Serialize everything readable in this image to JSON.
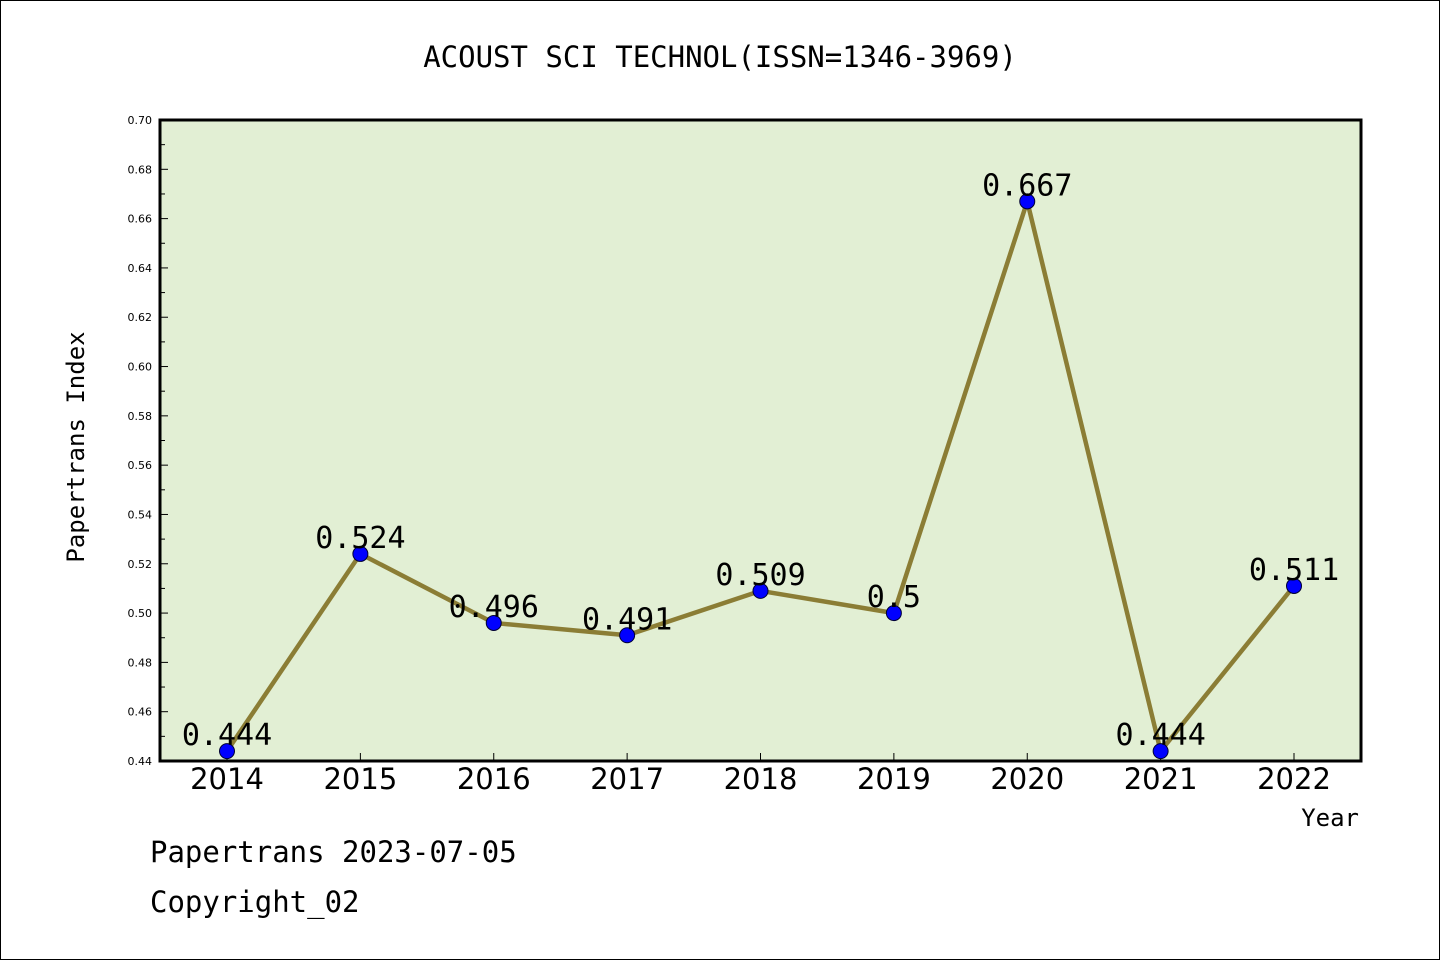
{
  "chart_data": {
    "type": "line",
    "title": "ACOUST SCI TECHNOL(ISSN=1346-3969)",
    "xlabel": "Year",
    "ylabel": "Papertrans Index",
    "categories": [
      "2014",
      "2015",
      "2016",
      "2017",
      "2018",
      "2019",
      "2020",
      "2021",
      "2022"
    ],
    "values": [
      0.444,
      0.524,
      0.496,
      0.491,
      0.509,
      0.5,
      0.667,
      0.444,
      0.511
    ],
    "data_labels": [
      "0.444",
      "0.524",
      "0.496",
      "0.491",
      "0.509",
      "0.5",
      "0.667",
      "0.444",
      "0.511"
    ],
    "ylim": [
      0.44,
      0.7
    ],
    "yticks": [
      "0.44",
      "0.46",
      "0.48",
      "0.50",
      "0.52",
      "0.54",
      "0.56",
      "0.58",
      "0.60",
      "0.62",
      "0.64",
      "0.66",
      "0.68",
      "0.70"
    ],
    "grid": false,
    "colors": {
      "plot_background": "#e2efd4",
      "line": "#8b7d35",
      "marker": "#0000ff"
    }
  },
  "footer": {
    "date_line": "Papertrans 2023-07-05",
    "copyright_line": "Copyright_02"
  }
}
